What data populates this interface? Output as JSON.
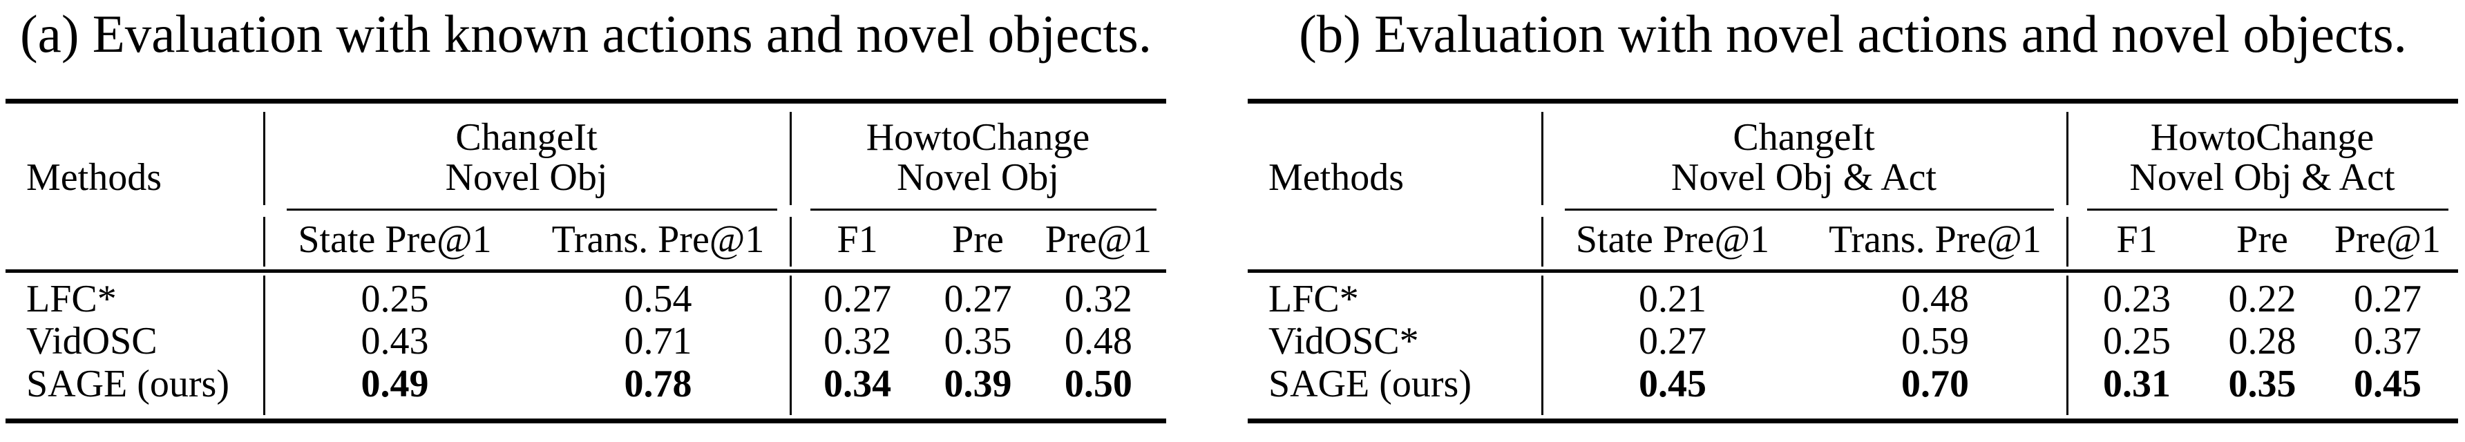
{
  "page": {
    "background": "#ffffff",
    "text_color": "#000000"
  },
  "tables": [
    {
      "caption": "(a) Evaluation with known actions and novel objects.",
      "methods_header": "Methods",
      "groups": [
        {
          "line1": "ChangeIt",
          "line2": "Novel Obj",
          "subcolumns": [
            "State Pre@1",
            "Trans. Pre@1"
          ]
        },
        {
          "line1": "HowtoChange",
          "line2": "Novel Obj",
          "subcolumns": [
            "F1",
            "Pre",
            "Pre@1"
          ]
        }
      ],
      "rows": [
        {
          "method": "LFC*",
          "values": [
            "0.25",
            "0.54",
            "0.27",
            "0.27",
            "0.32"
          ],
          "bold_values": false
        },
        {
          "method": "VidOSC",
          "values": [
            "0.43",
            "0.71",
            "0.32",
            "0.35",
            "0.48"
          ],
          "bold_values": false
        },
        {
          "method": "SAGE (ours)",
          "values": [
            "0.49",
            "0.78",
            "0.34",
            "0.39",
            "0.50"
          ],
          "bold_values": true
        }
      ]
    },
    {
      "caption": "(b) Evaluation with novel actions and novel objects.",
      "methods_header": "Methods",
      "groups": [
        {
          "line1": "ChangeIt",
          "line2": "Novel Obj & Act",
          "subcolumns": [
            "State Pre@1",
            "Trans. Pre@1"
          ]
        },
        {
          "line1": "HowtoChange",
          "line2": "Novel Obj & Act",
          "subcolumns": [
            "F1",
            "Pre",
            "Pre@1"
          ]
        }
      ],
      "rows": [
        {
          "method": "LFC*",
          "values": [
            "0.21",
            "0.48",
            "0.23",
            "0.22",
            "0.27"
          ],
          "bold_values": false
        },
        {
          "method": "VidOSC*",
          "values": [
            "0.27",
            "0.59",
            "0.25",
            "0.28",
            "0.37"
          ],
          "bold_values": false
        },
        {
          "method": "SAGE (ours)",
          "values": [
            "0.45",
            "0.70",
            "0.31",
            "0.35",
            "0.45"
          ],
          "bold_values": true
        }
      ]
    }
  ]
}
